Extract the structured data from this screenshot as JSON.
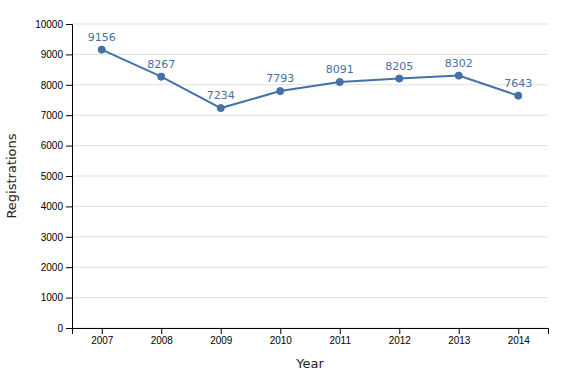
{
  "chart_data": {
    "type": "line",
    "xlabel": "Year",
    "ylabel": "Registrations",
    "x": [
      2007,
      2008,
      2009,
      2010,
      2011,
      2012,
      2013,
      2014
    ],
    "values": [
      9156,
      8267,
      7234,
      7793,
      8091,
      8205,
      8302,
      7643
    ],
    "color": "#4472a8",
    "marker": "circle",
    "xlim": [
      2006.5,
      2014.5
    ],
    "xticks": [
      2007,
      2008,
      2009,
      2010,
      2011,
      2012,
      2013,
      2014
    ],
    "ylim": [
      0,
      10000
    ],
    "yticks": [
      0,
      1000,
      2000,
      3000,
      4000,
      5000,
      6000,
      7000,
      8000,
      9000,
      10000
    ],
    "grid": true,
    "data_labels": true
  }
}
